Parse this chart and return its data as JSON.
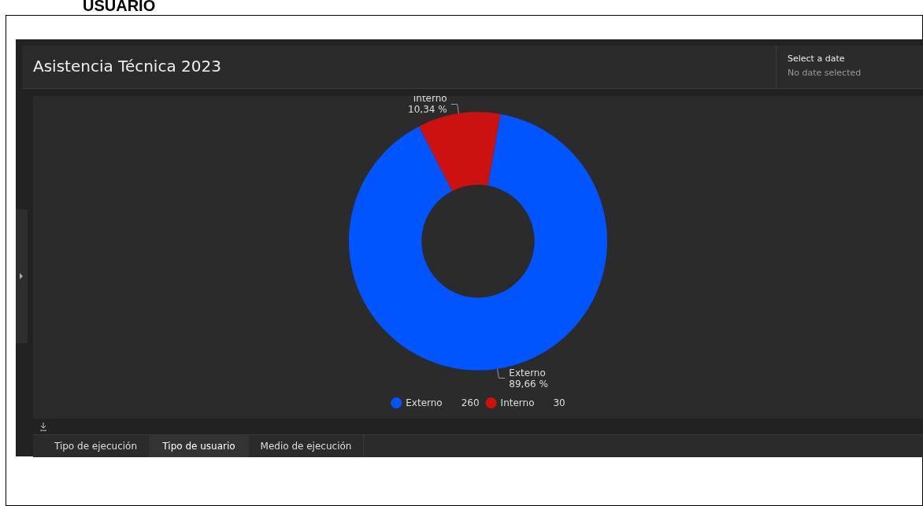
{
  "chart_data": {
    "type": "donut",
    "title": "Asistencia Técnica 2023",
    "categories": [
      "Externo",
      "Interno"
    ],
    "values": [
      89.66,
      10.34
    ],
    "colors": [
      "#0055ff",
      "#cc1111"
    ],
    "value_labels": [
      "89,66 %",
      "10,34 %"
    ],
    "legend": "bottom",
    "annotations": [
      "USUARIO",
      "Select a date",
      "No date selected",
      "Tipo de ejecución",
      "Tipo de usuario",
      "Medio de ejecución",
      "260",
      "30"
    ]
  }
}
